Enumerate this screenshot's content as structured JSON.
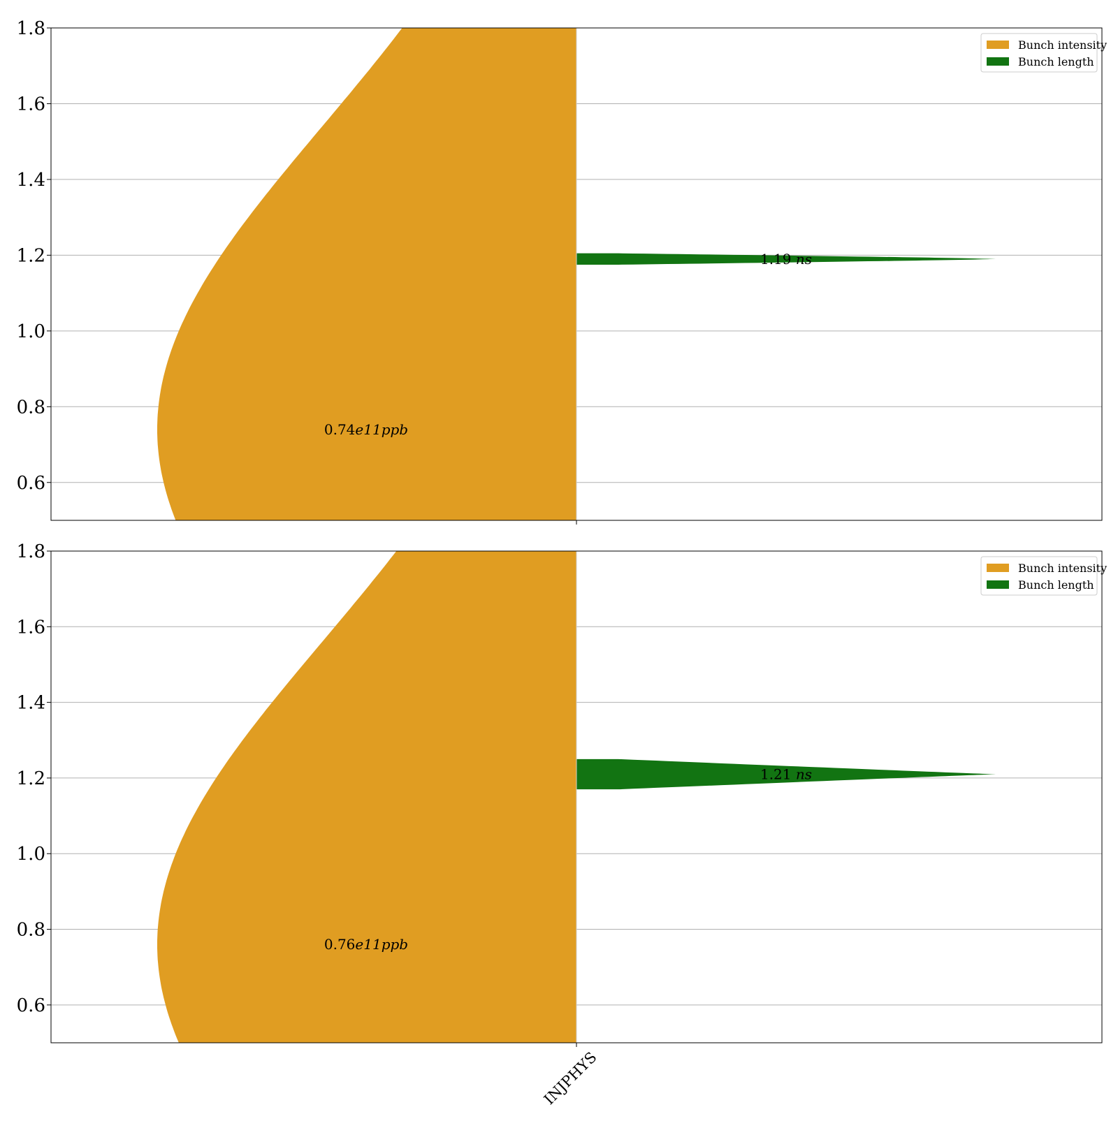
{
  "colors": {
    "intensity": "#e09d22",
    "length": "#127412",
    "grid": "#b0b0b0",
    "axes": "#000000"
  },
  "chart_data": [
    {
      "type": "violin",
      "categories": [
        "INJPHYS"
      ],
      "ylim": [
        0.5,
        1.8
      ],
      "yticks": [
        "0.6",
        "0.8",
        "1.0",
        "1.2",
        "1.4",
        "1.6",
        "1.8"
      ],
      "grid": true,
      "legend_position": "top-right",
      "xtick_labels_visible": false,
      "series": [
        {
          "name": "Bunch intensity",
          "side": "left",
          "median": 0.74,
          "label": {
            "value": "0.74",
            "exp": "e11",
            "unit": "ppb"
          }
        },
        {
          "name": "Bunch length",
          "side": "right",
          "median": 1.19,
          "label": {
            "value": "1.19",
            "unit": "ns"
          }
        }
      ]
    },
    {
      "type": "violin",
      "categories": [
        "INJPHYS"
      ],
      "ylim": [
        0.5,
        1.8
      ],
      "yticks": [
        "0.6",
        "0.8",
        "1.0",
        "1.2",
        "1.4",
        "1.6",
        "1.8"
      ],
      "grid": true,
      "legend_position": "top-right",
      "xtick_labels_visible": true,
      "series": [
        {
          "name": "Bunch intensity",
          "side": "left",
          "median": 0.76,
          "label": {
            "value": "0.76",
            "exp": "e11",
            "unit": "ppb"
          }
        },
        {
          "name": "Bunch length",
          "side": "right",
          "median": 1.21,
          "label": {
            "value": "1.21",
            "unit": "ns"
          }
        }
      ]
    }
  ]
}
